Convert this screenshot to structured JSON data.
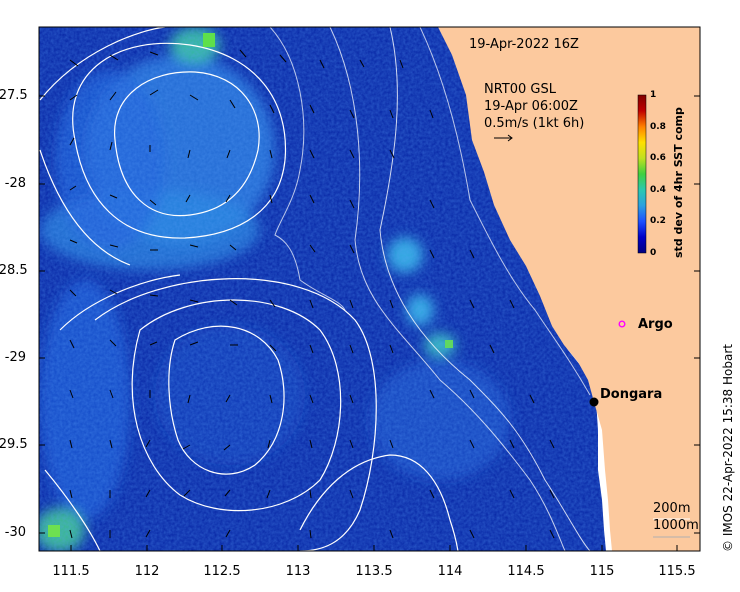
{
  "header": {
    "date": "19-Apr-2022 16Z",
    "current_product": "NRT00 GSL",
    "current_time": "19-Apr 06:00Z",
    "current_scale": "0.5m/s (1kt 6h)"
  },
  "colorbar": {
    "label": "std dev of 4hr SST comp",
    "ticks": [
      "0",
      "0.2",
      "0.4",
      "0.6",
      "0.8",
      "1"
    ],
    "colors": [
      "#000080",
      "#0000c8",
      "#1e50ff",
      "#2aa0e0",
      "#2ac8b0",
      "#40d040",
      "#c0e020",
      "#ffe000",
      "#ff8000",
      "#c00000",
      "#800000"
    ]
  },
  "axes": {
    "x_ticks": [
      "111.5",
      "112",
      "112.5",
      "113",
      "113.5",
      "114",
      "114.5",
      "115",
      "115.5"
    ],
    "y_ticks": [
      "-27.5",
      "-28",
      "-28.5",
      "-29",
      "-29.5",
      "-30"
    ],
    "xlim": [
      111.3,
      115.6
    ],
    "ylim": [
      -30.05,
      -27.1
    ]
  },
  "places": {
    "argo_label": "Argo",
    "dongara_label": "Dongara"
  },
  "legend": {
    "isobath_200": "200m",
    "isobath_1000": "1000m"
  },
  "credit": "© IMOS 22-Apr-2022 15:38 Hobart",
  "colors": {
    "land": "#fcc99e",
    "ocean_deep": "#0a2aa8",
    "ocean_mid": "#1a55d8",
    "ocean_light": "#30a0e8",
    "argo_marker": "#ff00ff",
    "contour": "#ffffff"
  }
}
